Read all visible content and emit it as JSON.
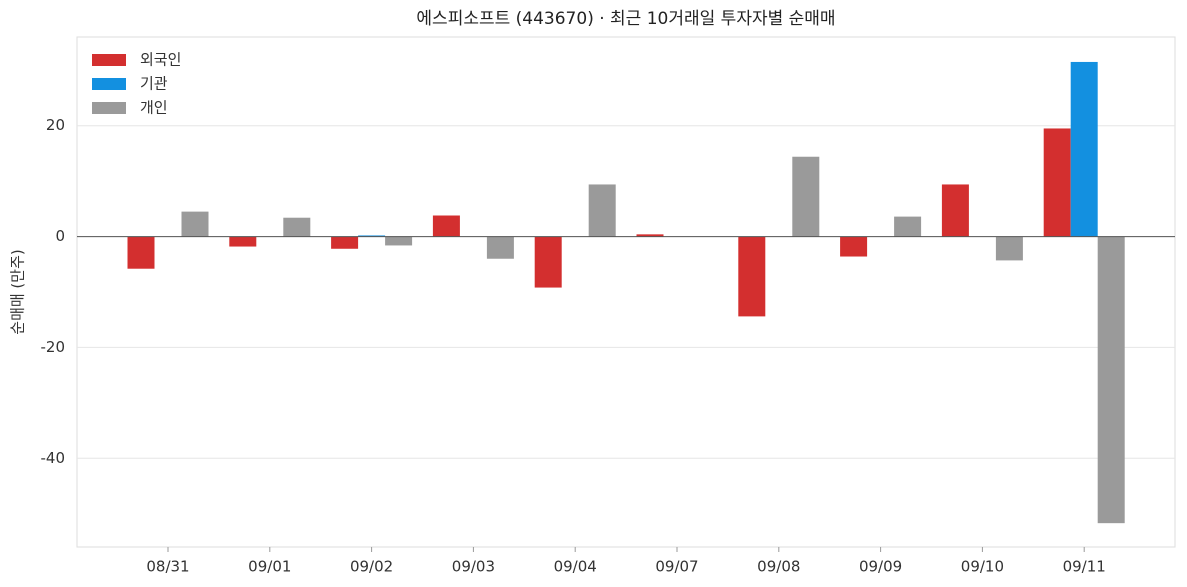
{
  "chart_data": {
    "type": "bar",
    "title": "에스피소프트 (443670) · 최근 10거래일 투자자별 순매매",
    "y_label": "순매매 (만주)",
    "categories": [
      "08/31",
      "09/01",
      "09/02",
      "09/03",
      "09/04",
      "09/07",
      "09/08",
      "09/09",
      "09/10",
      "09/11"
    ],
    "series": [
      {
        "name": "외국인",
        "color": "#d32f2f",
        "values": [
          -5.8,
          -1.8,
          -2.2,
          3.8,
          -9.2,
          0.4,
          -14.4,
          -3.6,
          9.4,
          19.5
        ]
      },
      {
        "name": "기관",
        "color": "#1390e0",
        "values": [
          0,
          0,
          0.2,
          0,
          0,
          0,
          0,
          0,
          0,
          31.5
        ]
      },
      {
        "name": "개인",
        "color": "#9a9a9a",
        "values": [
          4.5,
          3.4,
          -1.6,
          -4.0,
          9.4,
          0,
          14.4,
          3.6,
          -4.3,
          -51.7
        ]
      }
    ],
    "ylim": [
      -56,
      36
    ],
    "yticks": [
      -40,
      -20,
      0,
      20
    ],
    "grid": true,
    "legend": "upper left"
  }
}
